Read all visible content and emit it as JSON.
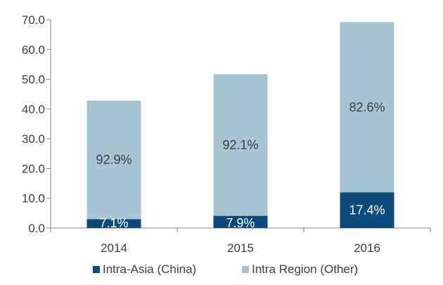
{
  "chart_data": {
    "type": "bar",
    "stacked": true,
    "categories": [
      "2014",
      "2015",
      "2016"
    ],
    "series": [
      {
        "name": "Intra-Asia (China)",
        "values": [
          3.0,
          4.1,
          12.0
        ],
        "labels": [
          "7.1%",
          "7.9%",
          "17.4%"
        ],
        "color": "#0b4a7a",
        "label_color": "#ffffff"
      },
      {
        "name": "Intra Region (Other)",
        "values": [
          39.8,
          47.6,
          57.2
        ],
        "labels": [
          "92.9%",
          "92.1%",
          "82.6%"
        ],
        "color": "#a7c4d4",
        "label_color": "#404040"
      }
    ],
    "ylim": [
      0,
      70
    ],
    "yticks": [
      "0.0",
      "10.0",
      "20.0",
      "30.0",
      "40.0",
      "50.0",
      "60.0",
      "70.0"
    ],
    "grid": false,
    "legend_position": "bottom"
  }
}
